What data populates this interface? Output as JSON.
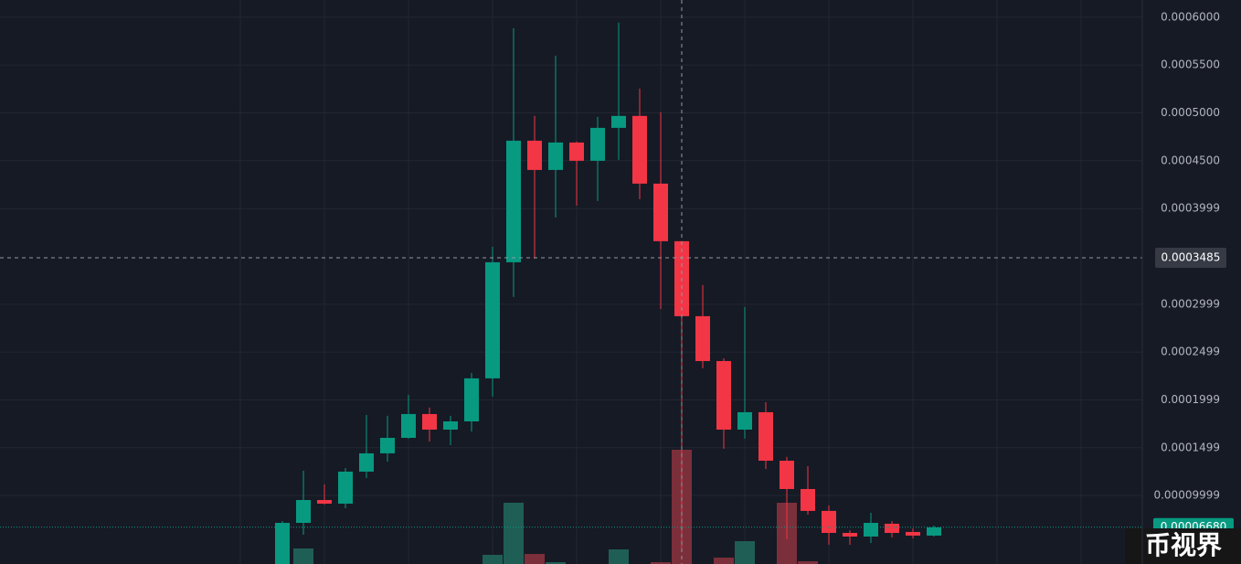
{
  "chart_data": {
    "type": "candlestick",
    "colors": {
      "up": "#089981",
      "down": "#f23645",
      "up_volume": "#1f5e55",
      "down_volume": "#7b2f3b"
    },
    "ylim": [
      2.83e-05,
      0.000618
    ],
    "yticks": [
      {
        "value": 0.0006,
        "label": "0.0006000"
      },
      {
        "value": 0.00055,
        "label": "0.0005500"
      },
      {
        "value": 0.0005,
        "label": "0.0005000"
      },
      {
        "value": 0.00045,
        "label": "0.0004500"
      },
      {
        "value": 0.0003999,
        "label": "0.0003999"
      },
      {
        "value": 0.0002999,
        "label": "0.0002999"
      },
      {
        "value": 0.0002499,
        "label": "0.0002499"
      },
      {
        "value": 0.0001999,
        "label": "0.0001999"
      },
      {
        "value": 0.0001499,
        "label": "0.0001499"
      },
      {
        "value": 9.999e-05,
        "label": "0.00009999"
      }
    ],
    "grid": true,
    "open": [
      2.55e-05,
      7.13e-05,
      9.52e-05,
      9.14e-05,
      0.0001249,
      0.000144,
      0.0001602,
      0.0001851,
      0.0001688,
      0.0001774,
      0.0002224,
      0.0003438,
      0.0004709,
      0.0004403,
      0.000469,
      0.0004499,
      0.0004843,
      0.0004968,
      0.000426,
      0.0003658,
      0.0002874,
      0.0002405,
      0.0001688,
      0.000187,
      0.0001363,
      0.0001067,
      8.38e-05,
      6.08e-05,
      5.7e-05,
      7.04e-05,
      6.18e-05,
      5.8e-05
    ],
    "high": [
      7.32e-05,
      0.0001258,
      0.0001115,
      0.0001287,
      0.0001841,
      0.0001832,
      0.0002052,
      0.0001918,
      0.0001832,
      0.0002281,
      0.00036,
      0.0005885,
      0.0004968,
      0.0005598,
      0.00047,
      0.0004958,
      0.0005943,
      0.0005254,
      0.0005006,
      0.0003658,
      0.0003199,
      0.0002434,
      0.000297,
      0.0001975,
      0.0001402,
      0.0001306,
      8.95e-05,
      6.37e-05,
      8.18e-05,
      7.32e-05,
      6.56e-05,
      6.85e-05
    ],
    "low": [
      2.55e-05,
      5.89e-05,
      9.04e-05,
      8.66e-05,
      0.0001182,
      0.0001354,
      0.0001593,
      0.0001564,
      0.0001526,
      0.0001669,
      0.0002033,
      0.0003075,
      0.0003476,
      0.0003906,
      0.0004031,
      0.0004078,
      0.0004509,
      0.0004098,
      0.000295,
      4.46e-05,
      0.0002329,
      0.0001488,
      0.0001593,
      0.0001277,
      5.42e-05,
      7.99e-05,
      4.84e-05,
      4.84e-05,
      5.03e-05,
      5.61e-05,
      5.51e-05,
      5.7e-05
    ],
    "close": [
      7.13e-05,
      9.52e-05,
      9.14e-05,
      0.0001249,
      0.000144,
      0.0001602,
      0.0001851,
      0.0001688,
      0.0001774,
      0.0002224,
      0.0003438,
      0.0004709,
      0.0004403,
      0.000469,
      0.0004499,
      0.0004843,
      0.0004968,
      0.000426,
      0.0003658,
      0.0002874,
      0.0002405,
      0.0001688,
      0.000187,
      0.0001363,
      0.0001067,
      8.38e-05,
      6.08e-05,
      5.7e-05,
      7.13e-05,
      6.08e-05,
      5.8e-05,
      6.66e-05
    ],
    "volume": [
      null,
      17,
      null,
      null,
      null,
      null,
      null,
      null,
      null,
      null,
      10,
      67,
      11,
      2,
      null,
      null,
      16,
      null,
      2,
      125,
      null,
      7,
      25,
      null,
      67,
      3,
      null,
      null,
      null,
      null,
      null,
      null
    ],
    "y2lim": [
      0,
      617
    ],
    "crosshair": {
      "value": 0.0003485,
      "label": "0.0003485"
    },
    "last_price": {
      "value": 6.68e-05,
      "label": "0.00006680"
    },
    "watermark": "币视界"
  }
}
